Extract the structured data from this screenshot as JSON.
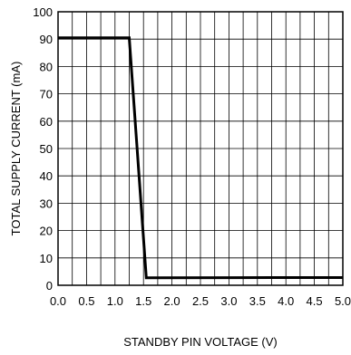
{
  "chart_data": {
    "type": "line",
    "title": "",
    "xlabel": "STANDBY PIN VOLTAGE (V)",
    "ylabel": "TOTAL SUPPLY CURRENT (mA)",
    "xlim": [
      0,
      5
    ],
    "ylim": [
      0,
      100
    ],
    "grid": true,
    "x_minor_step": 0.25,
    "x_ticks": [
      0,
      0.5,
      1.0,
      1.5,
      2.0,
      2.5,
      3.0,
      3.5,
      4.0,
      4.5,
      5.0
    ],
    "x_tick_labels": [
      "0.0",
      "0.5",
      "1.0",
      "1.5",
      "2.0",
      "2.5",
      "3.0",
      "3.5",
      "4.0",
      "4.5",
      "5.0"
    ],
    "y_ticks": [
      0,
      10,
      20,
      30,
      40,
      50,
      60,
      70,
      80,
      90,
      100
    ],
    "y_tick_labels": [
      "0",
      "10",
      "20",
      "30",
      "40",
      "50",
      "60",
      "70",
      "80",
      "90",
      "100"
    ],
    "series": [
      {
        "x": [
          0,
          1.25,
          1.55,
          3.75,
          5.0
        ],
        "y": [
          90.5,
          90.5,
          2.7,
          2.8,
          2.8
        ],
        "color": "#000000"
      }
    ]
  }
}
